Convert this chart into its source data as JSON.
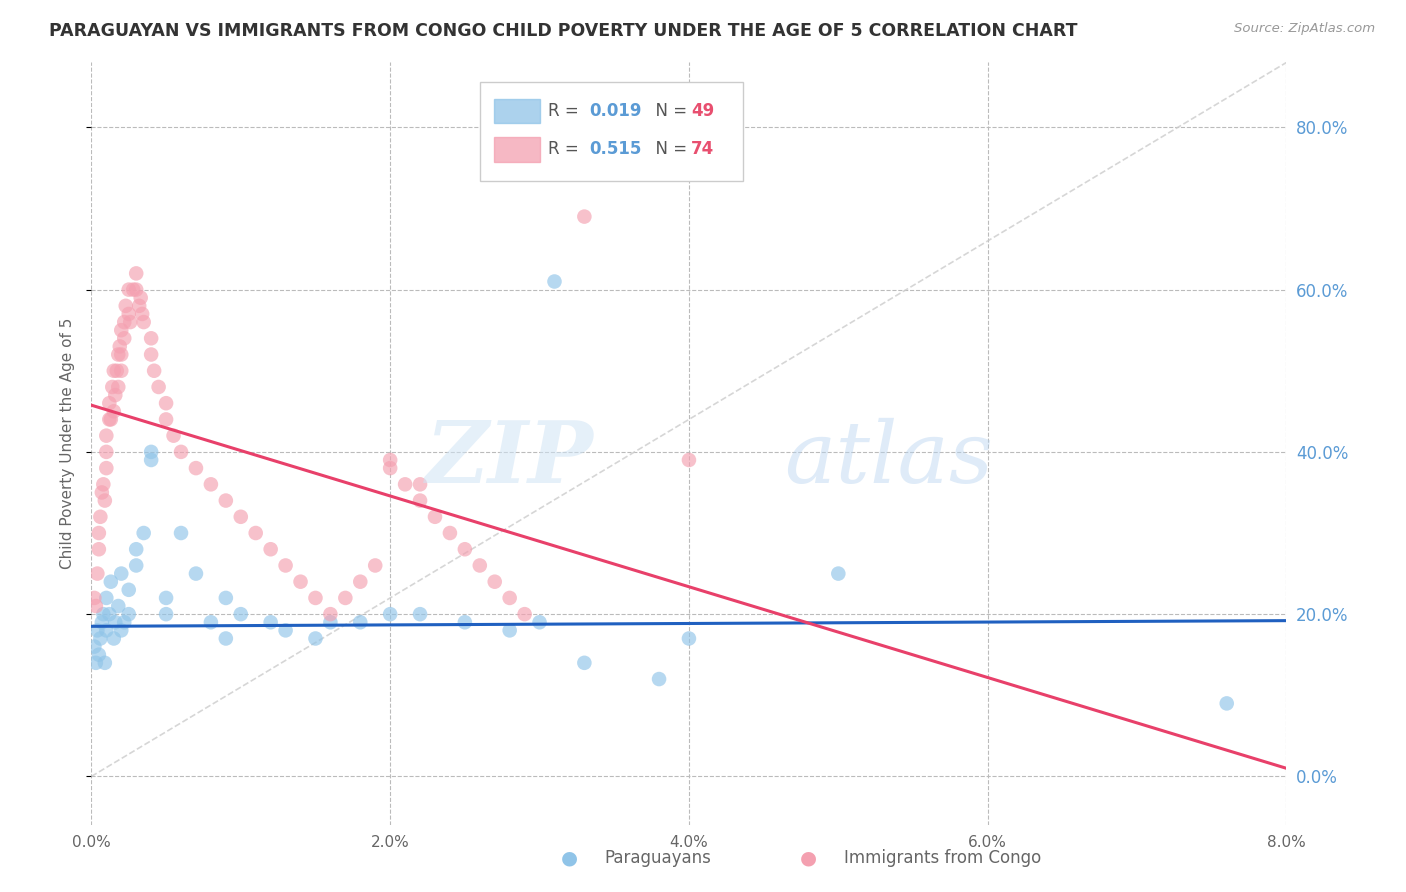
{
  "title": "PARAGUAYAN VS IMMIGRANTS FROM CONGO CHILD POVERTY UNDER THE AGE OF 5 CORRELATION CHART",
  "source": "Source: ZipAtlas.com",
  "ylabel": "Child Poverty Under the Age of 5",
  "blue_R": "0.019",
  "blue_N": "49",
  "pink_R": "0.515",
  "pink_N": "74",
  "blue_color": "#90c4e8",
  "pink_color": "#f4a0b0",
  "blue_line_color": "#2060c0",
  "pink_line_color": "#e8406a",
  "xmin": 0.0,
  "xmax": 0.08,
  "ymin": -0.06,
  "ymax": 0.88,
  "right_ytick_vals": [
    0.0,
    0.2,
    0.4,
    0.6,
    0.8
  ],
  "right_ytick_labels": [
    "0.0%",
    "20.0%",
    "40.0%",
    "60.0%",
    "80.0%"
  ],
  "xtick_vals": [
    0.0,
    0.02,
    0.04,
    0.06,
    0.08
  ],
  "xtick_labels": [
    "0.0%",
    "2.0%",
    "4.0%",
    "6.0%",
    "8.0%"
  ],
  "watermark_zip": "ZIP",
  "watermark_atlas": "atlas",
  "background_color": "#ffffff",
  "axis_color": "#5b9bd5",
  "text_color": "#666666",
  "grid_color": "#bbbbbb",
  "blue_label": "Paraguayans",
  "pink_label": "Immigrants from Congo"
}
